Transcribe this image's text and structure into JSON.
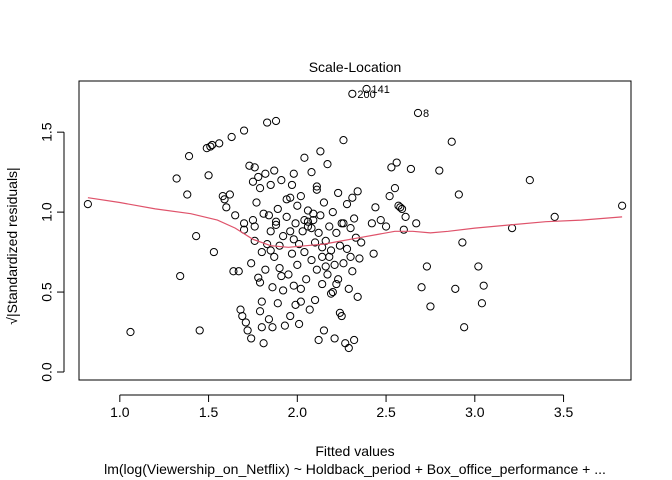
{
  "chart_data": {
    "type": "scatter",
    "title": "Scale-Location",
    "xlabel": "Fitted values",
    "ylabel": "√|Standardized residuals|",
    "subtitle": "lm(log(Viewership_on_Netflix) ~ Holdback_period + Box_office_performance +  ...",
    "xlim": [
      0.77,
      3.88
    ],
    "ylim": [
      -0.05,
      1.82
    ],
    "x_ticks": [
      "1.0",
      "1.5",
      "2.0",
      "2.5",
      "3.0",
      "3.5"
    ],
    "y_ticks": [
      "0.0",
      "0.5",
      "1.0",
      "1.5"
    ],
    "grid": false,
    "legend": "none",
    "series_color": "#000000",
    "smooth_color": "#DF536B",
    "labeled_points": [
      {
        "label": "141",
        "x": 2.39,
        "y": 1.77
      },
      {
        "label": "200",
        "x": 2.31,
        "y": 1.74
      },
      {
        "label": "8",
        "x": 2.68,
        "y": 1.62
      }
    ],
    "points": [
      [
        0.82,
        1.05
      ],
      [
        1.06,
        0.25
      ],
      [
        1.34,
        0.6
      ],
      [
        1.32,
        1.21
      ],
      [
        1.38,
        1.11
      ],
      [
        1.39,
        1.35
      ],
      [
        1.43,
        0.85
      ],
      [
        1.45,
        0.26
      ],
      [
        1.49,
        1.4
      ],
      [
        1.5,
        1.23
      ],
      [
        1.51,
        1.41
      ],
      [
        1.53,
        0.75
      ],
      [
        1.56,
        1.43
      ],
      [
        1.58,
        1.1
      ],
      [
        1.59,
        1.08
      ],
      [
        1.6,
        1.03
      ],
      [
        1.62,
        1.11
      ],
      [
        1.63,
        1.47
      ],
      [
        1.64,
        0.63
      ],
      [
        1.65,
        0.98
      ],
      [
        1.67,
        0.63
      ],
      [
        1.68,
        0.39
      ],
      [
        1.69,
        0.35
      ],
      [
        1.7,
        0.89
      ],
      [
        1.7,
        1.51
      ],
      [
        1.71,
        0.31
      ],
      [
        1.72,
        0.26
      ],
      [
        1.73,
        1.29
      ],
      [
        1.74,
        0.68
      ],
      [
        1.74,
        0.21
      ],
      [
        1.75,
        0.95
      ],
      [
        1.75,
        1.19
      ],
      [
        1.76,
        0.82
      ],
      [
        1.76,
        0.91
      ],
      [
        1.77,
        1.06
      ],
      [
        1.78,
        0.59
      ],
      [
        1.78,
        1.22
      ],
      [
        1.79,
        0.38
      ],
      [
        1.79,
        1.15
      ],
      [
        1.8,
        0.75
      ],
      [
        1.8,
        0.44
      ],
      [
        1.81,
        0.99
      ],
      [
        1.81,
        0.18
      ],
      [
        1.82,
        1.24
      ],
      [
        1.82,
        0.64
      ],
      [
        1.83,
        0.8
      ],
      [
        1.83,
        1.56
      ],
      [
        1.84,
        0.33
      ],
      [
        1.84,
        0.98
      ],
      [
        1.85,
        0.88
      ],
      [
        1.85,
        1.17
      ],
      [
        1.86,
        0.53
      ],
      [
        1.86,
        0.28
      ],
      [
        1.87,
        0.72
      ],
      [
        1.87,
        1.26
      ],
      [
        1.88,
        0.94
      ],
      [
        1.88,
        1.57
      ],
      [
        1.89,
        0.43
      ],
      [
        1.89,
        1.02
      ],
      [
        1.9,
        0.79
      ],
      [
        1.9,
        0.65
      ],
      [
        1.91,
        1.2
      ],
      [
        1.92,
        0.51
      ],
      [
        1.92,
        0.85
      ],
      [
        1.93,
        0.29
      ],
      [
        1.94,
        0.97
      ],
      [
        1.94,
        1.08
      ],
      [
        1.95,
        0.61
      ],
      [
        1.96,
        0.88
      ],
      [
        1.96,
        0.35
      ],
      [
        1.97,
        1.17
      ],
      [
        1.97,
        0.74
      ],
      [
        1.98,
        0.54
      ],
      [
        1.98,
        1.24
      ],
      [
        1.99,
        0.93
      ],
      [
        1.99,
        0.42
      ],
      [
        2.0,
        1.04
      ],
      [
        2.0,
        0.67
      ],
      [
        2.01,
        0.8
      ],
      [
        2.01,
        0.3
      ],
      [
        2.02,
        1.1
      ],
      [
        2.02,
        0.52
      ],
      [
        2.03,
        0.88
      ],
      [
        2.04,
        1.34
      ],
      [
        2.04,
        0.75
      ],
      [
        2.05,
        0.58
      ],
      [
        2.06,
        1.01
      ],
      [
        2.06,
        0.91
      ],
      [
        2.07,
        0.39
      ],
      [
        2.08,
        0.7
      ],
      [
        2.08,
        1.25
      ],
      [
        2.09,
        0.95
      ],
      [
        2.1,
        0.81
      ],
      [
        2.1,
        0.45
      ],
      [
        2.11,
        1.16
      ],
      [
        2.11,
        0.64
      ],
      [
        2.12,
        0.87
      ],
      [
        2.12,
        0.2
      ],
      [
        2.13,
        1.38
      ],
      [
        2.13,
        0.98
      ],
      [
        2.14,
        0.72
      ],
      [
        2.14,
        0.55
      ],
      [
        2.15,
        1.06
      ],
      [
        2.15,
        0.26
      ],
      [
        2.16,
        0.82
      ],
      [
        2.17,
        0.61
      ],
      [
        2.17,
        1.3
      ],
      [
        2.18,
        0.91
      ],
      [
        2.19,
        0.49
      ],
      [
        2.19,
        0.76
      ],
      [
        2.2,
        1.0
      ],
      [
        2.21,
        0.67
      ],
      [
        2.21,
        0.21
      ],
      [
        2.22,
        0.87
      ],
      [
        2.23,
        0.58
      ],
      [
        2.23,
        1.12
      ],
      [
        2.24,
        0.79
      ],
      [
        2.25,
        0.35
      ],
      [
        2.25,
        0.93
      ],
      [
        2.26,
        1.45
      ],
      [
        2.26,
        0.68
      ],
      [
        2.27,
        0.18
      ],
      [
        2.28,
        1.05
      ],
      [
        2.28,
        0.77
      ],
      [
        2.29,
        0.52
      ],
      [
        2.29,
        0.15
      ],
      [
        2.3,
        0.9
      ],
      [
        2.31,
        1.09
      ],
      [
        2.31,
        0.63
      ],
      [
        2.32,
        0.2
      ],
      [
        2.32,
        0.96
      ],
      [
        2.33,
        0.84
      ],
      [
        2.34,
        0.47
      ],
      [
        2.34,
        1.13
      ],
      [
        2.35,
        0.71
      ],
      [
        2.36,
        0.81
      ],
      [
        2.42,
        0.93
      ],
      [
        2.43,
        0.74
      ],
      [
        2.44,
        1.03
      ],
      [
        2.47,
        0.95
      ],
      [
        2.5,
        0.91
      ],
      [
        2.52,
        1.1
      ],
      [
        2.53,
        1.28
      ],
      [
        2.55,
        1.15
      ],
      [
        2.56,
        1.31
      ],
      [
        2.57,
        1.04
      ],
      [
        2.58,
        1.03
      ],
      [
        2.59,
        1.02
      ],
      [
        2.6,
        0.89
      ],
      [
        2.61,
        0.97
      ],
      [
        2.64,
        1.27
      ],
      [
        2.67,
        0.93
      ],
      [
        2.7,
        0.53
      ],
      [
        2.73,
        0.66
      ],
      [
        2.75,
        0.41
      ],
      [
        2.8,
        1.26
      ],
      [
        2.87,
        1.44
      ],
      [
        2.89,
        0.52
      ],
      [
        2.91,
        1.11
      ],
      [
        2.93,
        0.81
      ],
      [
        2.94,
        0.28
      ],
      [
        3.02,
        0.66
      ],
      [
        3.04,
        0.43
      ],
      [
        3.05,
        0.54
      ],
      [
        3.21,
        0.9
      ],
      [
        3.31,
        1.2
      ],
      [
        3.45,
        0.97
      ],
      [
        3.83,
        1.04
      ],
      [
        1.52,
        1.42
      ],
      [
        1.76,
        1.28
      ],
      [
        1.96,
        1.09
      ],
      [
        2.04,
        0.95
      ],
      [
        2.08,
        0.9
      ],
      [
        2.14,
        0.78
      ],
      [
        2.2,
        0.5
      ],
      [
        2.24,
        0.37
      ],
      [
        1.8,
        0.28
      ],
      [
        1.85,
        0.76
      ],
      [
        1.91,
        0.6
      ],
      [
        2.02,
        0.44
      ],
      [
        2.06,
        0.94
      ],
      [
        2.11,
        1.14
      ],
      [
        2.18,
        0.72
      ],
      [
        2.26,
        0.93
      ],
      [
        1.7,
        0.93
      ],
      [
        1.79,
        0.56
      ],
      [
        1.88,
        0.92
      ],
      [
        1.98,
        0.83
      ],
      [
        2.09,
        0.99
      ],
      [
        2.16,
        0.66
      ],
      [
        2.22,
        0.55
      ],
      [
        2.3,
        0.72
      ]
    ],
    "smooth": [
      [
        0.82,
        1.09
      ],
      [
        1.0,
        1.06
      ],
      [
        1.2,
        1.02
      ],
      [
        1.4,
        0.99
      ],
      [
        1.55,
        0.95
      ],
      [
        1.65,
        0.9
      ],
      [
        1.75,
        0.83
      ],
      [
        1.85,
        0.79
      ],
      [
        1.95,
        0.78
      ],
      [
        2.05,
        0.79
      ],
      [
        2.15,
        0.8
      ],
      [
        2.25,
        0.82
      ],
      [
        2.35,
        0.84
      ],
      [
        2.45,
        0.86
      ],
      [
        2.55,
        0.88
      ],
      [
        2.65,
        0.88
      ],
      [
        2.75,
        0.87
      ],
      [
        2.85,
        0.88
      ],
      [
        3.0,
        0.9
      ],
      [
        3.2,
        0.92
      ],
      [
        3.4,
        0.94
      ],
      [
        3.6,
        0.95
      ],
      [
        3.83,
        0.97
      ]
    ]
  }
}
